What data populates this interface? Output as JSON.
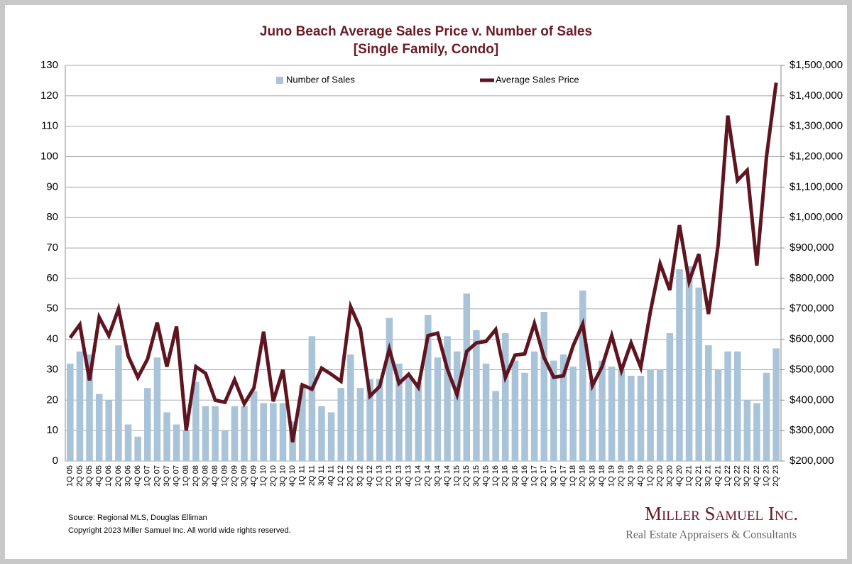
{
  "chart_data": {
    "type": "bar-line",
    "title": "Juno Beach Average Sales Price v. Number of Sales",
    "subtitle": "[Single Family, Condo]",
    "categories": [
      "1Q 05",
      "2Q 05",
      "3Q 05",
      "4Q 05",
      "1Q 06",
      "2Q 06",
      "3Q 06",
      "4Q 06",
      "1Q 07",
      "2Q 07",
      "3Q 07",
      "4Q 07",
      "1Q 08",
      "2Q 08",
      "3Q 08",
      "4Q 08",
      "1Q 09",
      "2Q 09",
      "3Q 09",
      "4Q 09",
      "1Q 10",
      "2Q 10",
      "3Q 10",
      "4Q 10",
      "1Q 11",
      "2Q 11",
      "3Q 11",
      "4Q 11",
      "1Q 12",
      "2Q 12",
      "3Q 12",
      "4Q 12",
      "1Q 13",
      "2Q 13",
      "3Q 13",
      "4Q 13",
      "1Q 14",
      "2Q 14",
      "3Q 14",
      "4Q 14",
      "1Q 15",
      "2Q 15",
      "3Q 15",
      "4Q 15",
      "1Q 16",
      "2Q 16",
      "3Q 16",
      "4Q 16",
      "1Q 17",
      "2Q 17",
      "3Q 17",
      "4Q 17",
      "1Q 18",
      "2Q 18",
      "3Q 18",
      "4Q 18",
      "1Q 19",
      "2Q 19",
      "3Q 19",
      "4Q 19",
      "1Q 20",
      "2Q 20",
      "3Q 20",
      "4Q 20",
      "1Q 21",
      "2Q 21",
      "3Q 21",
      "4Q 21",
      "1Q 22",
      "2Q 22",
      "3Q 22",
      "4Q 22",
      "1Q 23",
      "2Q 23"
    ],
    "series": [
      {
        "name": "Number of Sales",
        "type": "bar",
        "color": "#a9c3d9",
        "values": [
          32,
          36,
          35,
          22,
          20,
          38,
          12,
          8,
          24,
          34,
          16,
          12,
          10,
          26,
          18,
          18,
          10,
          18,
          18,
          23,
          19,
          19,
          19,
          13,
          25,
          41,
          18,
          16,
          24,
          35,
          24,
          27,
          27,
          47,
          32,
          28,
          26,
          48,
          34,
          41,
          36,
          55,
          43,
          32,
          23,
          42,
          33,
          29,
          36,
          49,
          33,
          35,
          31,
          56,
          26,
          33,
          31,
          30,
          28,
          28,
          30,
          30,
          42,
          63,
          64,
          57,
          38,
          30,
          36,
          36,
          20,
          19,
          29,
          37
        ]
      },
      {
        "name": "Average Sales Price",
        "type": "line",
        "axis": "y2",
        "color": "#5e1520",
        "values": [
          605000,
          648000,
          465000,
          672000,
          612000,
          700000,
          545000,
          475000,
          535000,
          655000,
          510000,
          642000,
          300000,
          510000,
          488000,
          400000,
          393000,
          467000,
          388000,
          440000,
          625000,
          396000,
          500000,
          262000,
          450000,
          436000,
          505000,
          485000,
          462000,
          707000,
          635000,
          413000,
          445000,
          568000,
          455000,
          485000,
          442000,
          612000,
          620000,
          502000,
          418000,
          560000,
          588000,
          593000,
          632000,
          475000,
          548000,
          552000,
          652000,
          540000,
          475000,
          480000,
          578000,
          650000,
          448000,
          510000,
          612000,
          497000,
          588000,
          508000,
          692000,
          848000,
          762000,
          975000,
          790000,
          880000,
          683000,
          910000,
          1335000,
          1122000,
          1155000,
          842000,
          1200000,
          1443000
        ]
      }
    ],
    "ylim": [
      0,
      130
    ],
    "yticks": [
      0,
      10,
      20,
      30,
      40,
      50,
      60,
      70,
      80,
      90,
      100,
      110,
      120,
      130
    ],
    "y2lim": [
      200000,
      1500000
    ],
    "y2ticks": [
      {
        "value": 200000,
        "label": "$200,000"
      },
      {
        "value": 300000,
        "label": "$300,000"
      },
      {
        "value": 400000,
        "label": "$400,000"
      },
      {
        "value": 500000,
        "label": "$500,000"
      },
      {
        "value": 600000,
        "label": "$600,000"
      },
      {
        "value": 700000,
        "label": "$700,000"
      },
      {
        "value": 800000,
        "label": "$800,000"
      },
      {
        "value": 900000,
        "label": "$900,000"
      },
      {
        "value": 1000000,
        "label": "$1,000,000"
      },
      {
        "value": 1100000,
        "label": "$1,100,000"
      },
      {
        "value": 1200000,
        "label": "$1,200,000"
      },
      {
        "value": 1300000,
        "label": "$1,300,000"
      },
      {
        "value": 1400000,
        "label": "$1,400,000"
      },
      {
        "value": 1500000,
        "label": "$1,500,000"
      }
    ],
    "grid": true,
    "source": "Source: Regional MLS, Douglas Elliman",
    "copyright": "Copyright 2023 Miller Samuel Inc.  All world wide rights reserved.",
    "logo": "Miller Samuel Inc.",
    "logo_tagline": "Real Estate Appraisers & Consultants"
  }
}
